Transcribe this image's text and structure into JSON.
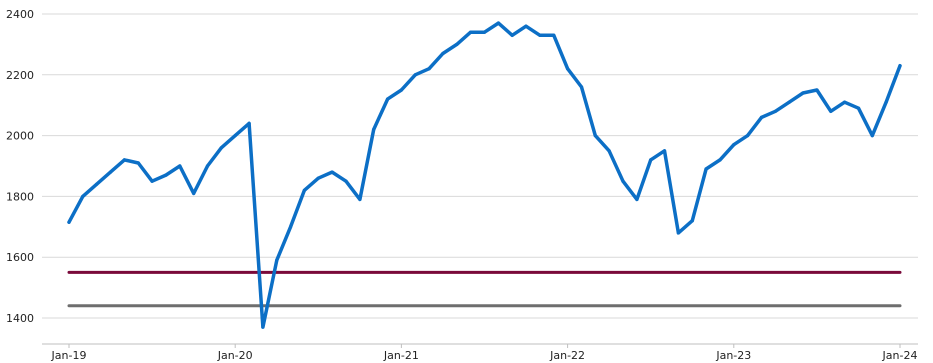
{
  "chart_data": {
    "type": "line",
    "title": "",
    "xlabel": "",
    "ylabel": "",
    "x_tick_labels": [
      "Jan-19",
      "Jan-20",
      "Jan-21",
      "Jan-22",
      "Jan-23",
      "Jan-24"
    ],
    "x_ticks": [
      "2019-01",
      "2020-01",
      "2021-01",
      "2022-01",
      "2023-01",
      "2024-01"
    ],
    "y_ticks": [
      1400,
      1600,
      1800,
      2000,
      2200,
      2400
    ],
    "ylim": [
      1350,
      2420
    ],
    "xlim": [
      "2019-01",
      "2024-01"
    ],
    "grid": "horizontal",
    "legend": "none",
    "series": [
      {
        "color": "#0c6fc6",
        "x": [
          "2019-01",
          "2019-02",
          "2019-03",
          "2019-04",
          "2019-05",
          "2019-06",
          "2019-07",
          "2019-08",
          "2019-09",
          "2019-10",
          "2019-11",
          "2019-12",
          "2020-01",
          "2020-02",
          "2020-03",
          "2020-04",
          "2020-05",
          "2020-06",
          "2020-07",
          "2020-08",
          "2020-09",
          "2020-10",
          "2020-11",
          "2020-12",
          "2021-01",
          "2021-02",
          "2021-03",
          "2021-04",
          "2021-05",
          "2021-06",
          "2021-07",
          "2021-08",
          "2021-09",
          "2021-10",
          "2021-11",
          "2021-12",
          "2022-01",
          "2022-02",
          "2022-03",
          "2022-04",
          "2022-05",
          "2022-06",
          "2022-07",
          "2022-08",
          "2022-09",
          "2022-10",
          "2022-11",
          "2022-12",
          "2023-01",
          "2023-02",
          "2023-03",
          "2023-04",
          "2023-05",
          "2023-06",
          "2023-07",
          "2023-08",
          "2023-09",
          "2023-10",
          "2023-11",
          "2023-12",
          "2024-01"
        ],
        "values": [
          1715,
          1800,
          1840,
          1880,
          1920,
          1910,
          1850,
          1870,
          1900,
          1810,
          1900,
          1960,
          2000,
          2040,
          1370,
          1590,
          1700,
          1820,
          1860,
          1880,
          1850,
          1790,
          2020,
          2120,
          2150,
          2200,
          2220,
          2270,
          2300,
          2340,
          2340,
          2370,
          2330,
          2360,
          2330,
          2330,
          2220,
          2160,
          2000,
          1950,
          1850,
          1790,
          1920,
          1950,
          1680,
          1720,
          1890,
          1920,
          1970,
          2000,
          2060,
          2080,
          2110,
          2140,
          2150,
          2080,
          2110,
          2090,
          2000,
          2110,
          2230
        ]
      },
      {
        "color": "#7a0a3a",
        "x": [
          "2019-01",
          "2024-01"
        ],
        "values": [
          1550,
          1550
        ]
      },
      {
        "color": "#6e6e6e",
        "x": [
          "2019-01",
          "2024-01"
        ],
        "values": [
          1440,
          1440
        ]
      }
    ]
  }
}
